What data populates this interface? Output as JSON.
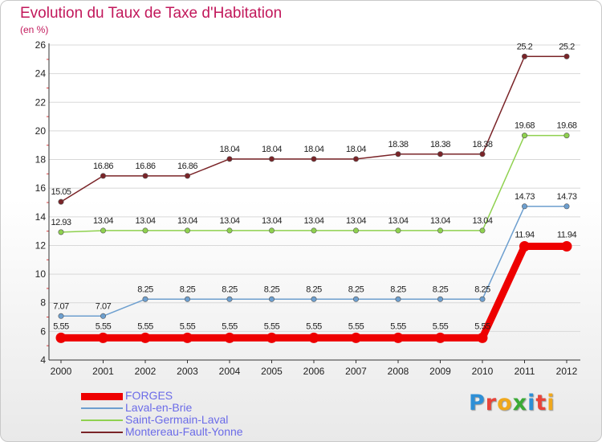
{
  "header": {
    "title": "Evolution du Taux de Taxe d'Habitation",
    "subtitle": "(en %)"
  },
  "brand": {
    "text": "Proxiti",
    "letter_colors": [
      "#2e8fd6",
      "#e8443a",
      "#f0a81c",
      "#3aaa35",
      "#2e8fd6",
      "#e8443a",
      "#f0a81c"
    ]
  },
  "chart_data": {
    "type": "line",
    "title": "Evolution du Taux de Taxe d'Habitation",
    "ylabel": "(en %)",
    "ylim": [
      4,
      26
    ],
    "yticks": [
      4,
      6,
      8,
      10,
      12,
      14,
      16,
      18,
      20,
      22,
      24,
      26
    ],
    "grid": "horizontal",
    "legend_position": "bottom-left",
    "x": [
      2000,
      2001,
      2002,
      2003,
      2004,
      2005,
      2006,
      2007,
      2008,
      2009,
      2010,
      2011,
      2012
    ],
    "x_labels": [
      "2000",
      "2001",
      "2002",
      "2003",
      "2004",
      "2005",
      "2006",
      "2007",
      "2008",
      "2009",
      "2010",
      "2011",
      "2012"
    ],
    "series": [
      {
        "name": "Montereau-Fault-Yonne",
        "color": "#7a2428",
        "values": [
          15.05,
          16.86,
          16.86,
          16.86,
          18.04,
          18.04,
          18.04,
          18.04,
          18.38,
          18.38,
          18.38,
          25.2,
          25.2
        ],
        "labels": [
          "15.05",
          "16.86",
          "16.86",
          "16.86",
          "18.04",
          "18.04",
          "18.04",
          "18.04",
          "18.38",
          "18.38",
          "18.38",
          "25.2",
          "25.2"
        ]
      },
      {
        "name": "Saint-Germain-Laval",
        "color": "#8fd14f",
        "values": [
          12.93,
          13.04,
          13.04,
          13.04,
          13.04,
          13.04,
          13.04,
          13.04,
          13.04,
          13.04,
          13.04,
          19.68,
          19.68
        ],
        "labels": [
          "12.93",
          "13.04",
          "13.04",
          "13.04",
          "13.04",
          "13.04",
          "13.04",
          "13.04",
          "13.04",
          "13.04",
          "13.04",
          "19.68",
          "19.68"
        ]
      },
      {
        "name": "Laval-en-Brie",
        "color": "#6d9fcf",
        "values": [
          7.07,
          7.07,
          8.25,
          8.25,
          8.25,
          8.25,
          8.25,
          8.25,
          8.25,
          8.25,
          8.25,
          14.73,
          14.73
        ],
        "labels": [
          "7.07",
          "7.07",
          "8.25",
          "8.25",
          "8.25",
          "8.25",
          "8.25",
          "8.25",
          "8.25",
          "8.25",
          "8.25",
          "14.73",
          "14.73"
        ]
      },
      {
        "name": "FORGES",
        "color": "#ee0000",
        "values": [
          5.55,
          5.55,
          5.55,
          5.55,
          5.55,
          5.55,
          5.55,
          5.55,
          5.55,
          5.55,
          5.55,
          11.94,
          11.94
        ],
        "labels": [
          "5.55",
          "5.55",
          "5.55",
          "5.55",
          "5.55",
          "5.55",
          "5.55",
          "5.55",
          "5.55",
          "5.55",
          "5.55",
          "11.94",
          "11.94"
        ]
      }
    ],
    "legend_order": [
      "FORGES",
      "Laval-en-Brie",
      "Saint-Germain-Laval",
      "Montereau-Fault-Yonne"
    ]
  }
}
